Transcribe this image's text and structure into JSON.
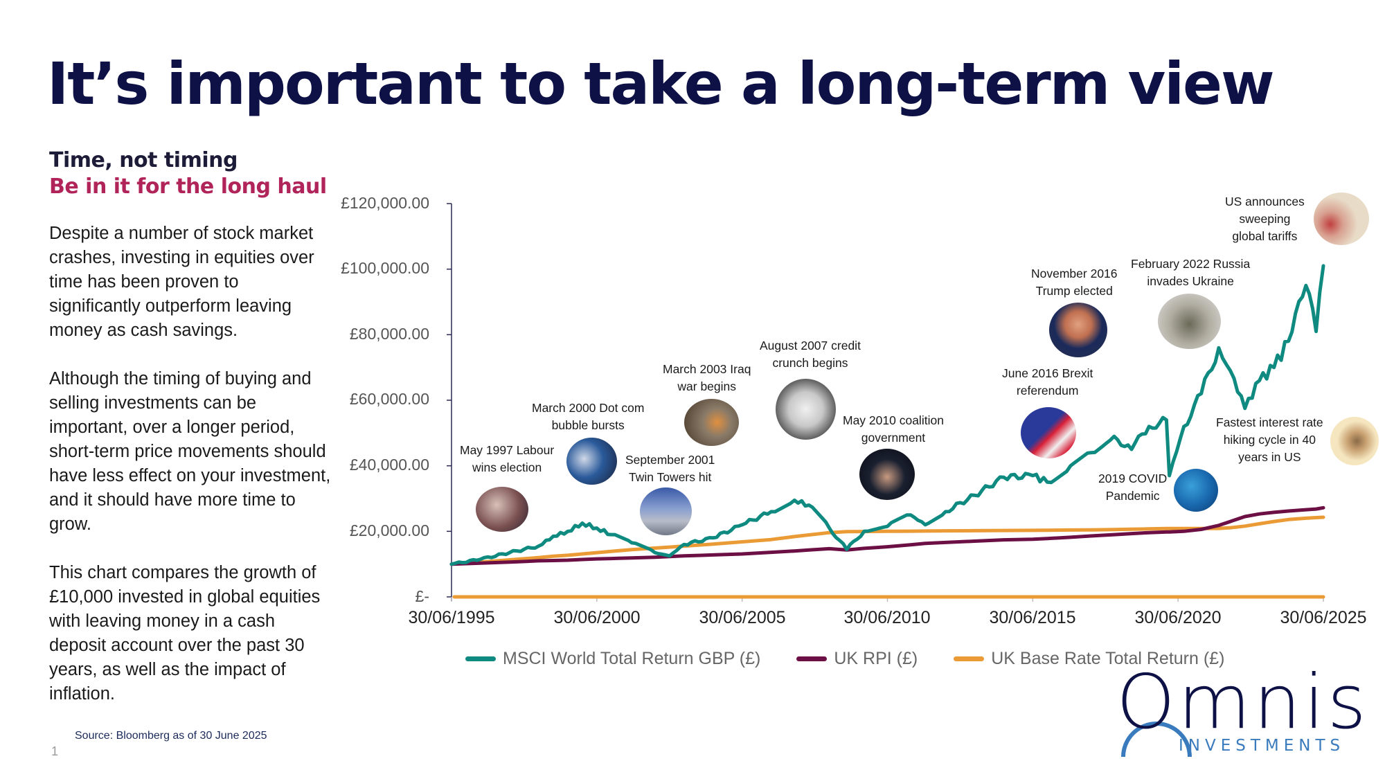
{
  "page": {
    "title": "It’s important to take a long-term view",
    "subtitle": "Time, not timing",
    "tagline": "Be in it for the long haul",
    "paragraphs": [
      "Despite a number of stock market crashes, investing in equities over time has been proven to significantly outperform leaving money as cash savings.",
      "Although the timing of buying and selling investments can be important, over a longer period, short-term price movements should have less effect on your investment, and it should have more time to grow.",
      "This chart compares the growth of £10,000 invested in global equities with leaving money in a cash deposit account over the past 30 years, as well as the impact of inflation."
    ],
    "source": "Source: Bloomberg as of 30 June 2025",
    "page_number": "1",
    "logo": {
      "word": "Omnis",
      "sub": "INVESTMENTS"
    }
  },
  "colors": {
    "title": "#0d1145",
    "accent_pink": "#b0245a",
    "msci": "#0e8a80",
    "rpi": "#6b0f45",
    "base_rate": "#eb9b35",
    "logo_blue": "#3a7bbd"
  },
  "chart_data": {
    "type": "line",
    "title": "",
    "xlabel": "",
    "ylabel": "",
    "ylim": [
      0,
      120000
    ],
    "y_ticks": [
      "£-",
      "£20,000.00",
      "£40,000.00",
      "£60,000.00",
      "£80,000.00",
      "£100,000.00",
      "£120,000.00"
    ],
    "x_ticks": [
      "30/06/1995",
      "30/06/2000",
      "30/06/2005",
      "30/06/2010",
      "30/06/2015",
      "30/06/2020",
      "30/06/2025"
    ],
    "grid": false,
    "legend_position": "bottom",
    "x": [
      1995.5,
      1996.5,
      1997.5,
      1998.5,
      1999.0,
      1999.5,
      2000.0,
      2000.5,
      2001.0,
      2001.7,
      2002.5,
      2003.0,
      2003.5,
      2004.5,
      2005.5,
      2006.5,
      2007.3,
      2007.8,
      2008.5,
      2009.1,
      2009.7,
      2010.5,
      2011.3,
      2011.8,
      2012.5,
      2013.5,
      2014.5,
      2015.5,
      2016.0,
      2016.8,
      2017.5,
      2018.3,
      2018.9,
      2019.5,
      2020.1,
      2020.2,
      2020.7,
      2021.3,
      2021.9,
      2022.3,
      2022.8,
      2023.3,
      2023.8,
      2024.3,
      2024.9,
      2025.25,
      2025.5
    ],
    "series": [
      {
        "name": "MSCI World Total Return GBP (£)",
        "values": [
          10000,
          11500,
          13500,
          15500,
          18500,
          20000,
          22500,
          21000,
          19000,
          16500,
          13500,
          12500,
          16000,
          18000,
          22000,
          26000,
          29500,
          28000,
          21000,
          14500,
          20000,
          21500,
          25000,
          22000,
          26000,
          31000,
          36500,
          37000,
          35000,
          40000,
          44000,
          49000,
          45000,
          52000,
          54000,
          37000,
          52000,
          62000,
          76000,
          69000,
          57500,
          66000,
          70000,
          78000,
          95000,
          81000,
          101000
        ]
      },
      {
        "name": "UK RPI (£)",
        "values": [
          10000,
          10300,
          10600,
          11000,
          11100,
          11200,
          11400,
          11600,
          11700,
          11900,
          12100,
          12300,
          12500,
          12800,
          13100,
          13600,
          14000,
          14300,
          14700,
          14300,
          14800,
          15300,
          15900,
          16300,
          16600,
          17000,
          17400,
          17600,
          17800,
          18200,
          18600,
          19000,
          19300,
          19600,
          19800,
          19800,
          20000,
          20600,
          21800,
          23000,
          24500,
          25300,
          25800,
          26200,
          26600,
          26800,
          27200
        ]
      },
      {
        "name": "UK Base Rate Total Return (£)",
        "values": [
          10000,
          10600,
          11300,
          12000,
          12400,
          12700,
          13100,
          13500,
          13900,
          14400,
          14900,
          15200,
          15500,
          16100,
          16800,
          17500,
          18400,
          18900,
          19600,
          19900,
          19950,
          20000,
          20050,
          20100,
          20150,
          20200,
          20250,
          20300,
          20350,
          20400,
          20450,
          20550,
          20650,
          20750,
          20850,
          20850,
          20850,
          20850,
          20900,
          21100,
          21600,
          22300,
          23000,
          23600,
          24000,
          24200,
          24300
        ]
      }
    ],
    "annotations": [
      {
        "label": "May 1997 Labour wins election",
        "x": 1997.4
      },
      {
        "label": "March 2000 Dot com bubble bursts",
        "x": 2000.2
      },
      {
        "label": "September 2001 Twin Towers hit",
        "x": 2001.7
      },
      {
        "label": "March 2003 Iraq war begins",
        "x": 2003.2
      },
      {
        "label": "August 2007 credit crunch begins",
        "x": 2007.6
      },
      {
        "label": "May 2010 coalition government",
        "x": 2010.4
      },
      {
        "label": "June 2016 Brexit referendum",
        "x": 2016.5
      },
      {
        "label": "November 2016 Trump elected",
        "x": 2016.9
      },
      {
        "label": "2019 COVID Pandemic",
        "x": 2020.1
      },
      {
        "label": "February 2022 Russia invades Ukraine",
        "x": 2022.1
      },
      {
        "label": "Fastest interest rate hiking cycle in 40 years in US",
        "x": 2023.0
      },
      {
        "label": "US announces sweeping global tariffs",
        "x": 2025.3
      }
    ]
  },
  "legend": [
    {
      "label": "MSCI World Total Return GBP (£)",
      "color": "#0e8a80"
    },
    {
      "label": "UK RPI (£)",
      "color": "#6b0f45"
    },
    {
      "label": "UK Base Rate Total Return (£)",
      "color": "#eb9b35"
    }
  ],
  "annotation_text": {
    "labour": [
      "May 1997 Labour",
      "wins election"
    ],
    "dotcom": [
      "March 2000 Dot com",
      "bubble bursts"
    ],
    "twin": [
      "September 2001",
      "Twin Towers hit"
    ],
    "iraq": [
      "March 2003 Iraq",
      "war begins"
    ],
    "credit": [
      "August 2007 credit",
      "crunch begins"
    ],
    "coalition": [
      "May 2010 coalition",
      "government"
    ],
    "brexit": [
      "June 2016 Brexit",
      "referendum"
    ],
    "trump": [
      "November 2016",
      "Trump elected"
    ],
    "covid": [
      "2019 COVID",
      "Pandemic"
    ],
    "russia": [
      "February 2022 Russia",
      "invades Ukraine"
    ],
    "rates": [
      "Fastest interest rate",
      "hiking cycle in 40",
      "years in US"
    ],
    "tariffs": [
      "US announces",
      "sweeping",
      "global tariffs"
    ]
  }
}
